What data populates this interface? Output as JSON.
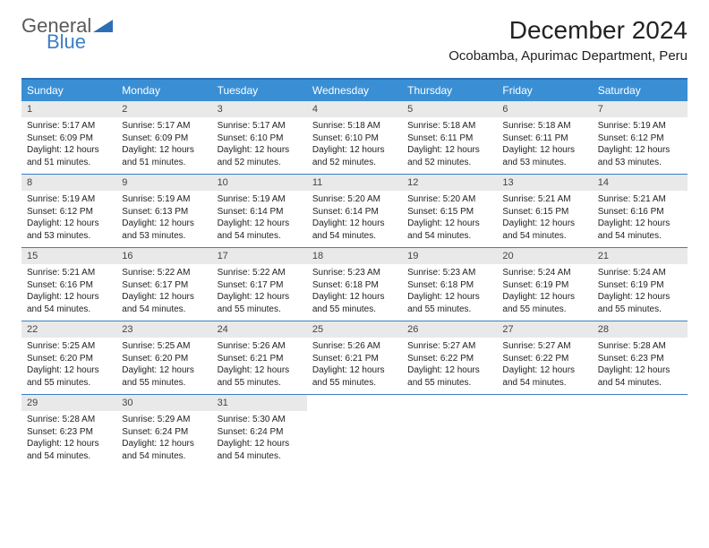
{
  "logo": {
    "text1": "General",
    "text2": "Blue",
    "accent_color": "#3a8fd4"
  },
  "title": "December 2024",
  "location": "Ocobamba, Apurimac Department, Peru",
  "weekday_header_bg": "#3a8fd4",
  "weekday_header_fg": "#ffffff",
  "daynum_bg": "#e9e9e9",
  "row_border_color": "#3a7fc4",
  "weekdays": [
    "Sunday",
    "Monday",
    "Tuesday",
    "Wednesday",
    "Thursday",
    "Friday",
    "Saturday"
  ],
  "weeks": [
    [
      {
        "n": "1",
        "sunrise": "5:17 AM",
        "sunset": "6:09 PM",
        "daylight": "12 hours and 51 minutes."
      },
      {
        "n": "2",
        "sunrise": "5:17 AM",
        "sunset": "6:09 PM",
        "daylight": "12 hours and 51 minutes."
      },
      {
        "n": "3",
        "sunrise": "5:17 AM",
        "sunset": "6:10 PM",
        "daylight": "12 hours and 52 minutes."
      },
      {
        "n": "4",
        "sunrise": "5:18 AM",
        "sunset": "6:10 PM",
        "daylight": "12 hours and 52 minutes."
      },
      {
        "n": "5",
        "sunrise": "5:18 AM",
        "sunset": "6:11 PM",
        "daylight": "12 hours and 52 minutes."
      },
      {
        "n": "6",
        "sunrise": "5:18 AM",
        "sunset": "6:11 PM",
        "daylight": "12 hours and 53 minutes."
      },
      {
        "n": "7",
        "sunrise": "5:19 AM",
        "sunset": "6:12 PM",
        "daylight": "12 hours and 53 minutes."
      }
    ],
    [
      {
        "n": "8",
        "sunrise": "5:19 AM",
        "sunset": "6:12 PM",
        "daylight": "12 hours and 53 minutes."
      },
      {
        "n": "9",
        "sunrise": "5:19 AM",
        "sunset": "6:13 PM",
        "daylight": "12 hours and 53 minutes."
      },
      {
        "n": "10",
        "sunrise": "5:19 AM",
        "sunset": "6:14 PM",
        "daylight": "12 hours and 54 minutes."
      },
      {
        "n": "11",
        "sunrise": "5:20 AM",
        "sunset": "6:14 PM",
        "daylight": "12 hours and 54 minutes."
      },
      {
        "n": "12",
        "sunrise": "5:20 AM",
        "sunset": "6:15 PM",
        "daylight": "12 hours and 54 minutes."
      },
      {
        "n": "13",
        "sunrise": "5:21 AM",
        "sunset": "6:15 PM",
        "daylight": "12 hours and 54 minutes."
      },
      {
        "n": "14",
        "sunrise": "5:21 AM",
        "sunset": "6:16 PM",
        "daylight": "12 hours and 54 minutes."
      }
    ],
    [
      {
        "n": "15",
        "sunrise": "5:21 AM",
        "sunset": "6:16 PM",
        "daylight": "12 hours and 54 minutes."
      },
      {
        "n": "16",
        "sunrise": "5:22 AM",
        "sunset": "6:17 PM",
        "daylight": "12 hours and 54 minutes."
      },
      {
        "n": "17",
        "sunrise": "5:22 AM",
        "sunset": "6:17 PM",
        "daylight": "12 hours and 55 minutes."
      },
      {
        "n": "18",
        "sunrise": "5:23 AM",
        "sunset": "6:18 PM",
        "daylight": "12 hours and 55 minutes."
      },
      {
        "n": "19",
        "sunrise": "5:23 AM",
        "sunset": "6:18 PM",
        "daylight": "12 hours and 55 minutes."
      },
      {
        "n": "20",
        "sunrise": "5:24 AM",
        "sunset": "6:19 PM",
        "daylight": "12 hours and 55 minutes."
      },
      {
        "n": "21",
        "sunrise": "5:24 AM",
        "sunset": "6:19 PM",
        "daylight": "12 hours and 55 minutes."
      }
    ],
    [
      {
        "n": "22",
        "sunrise": "5:25 AM",
        "sunset": "6:20 PM",
        "daylight": "12 hours and 55 minutes."
      },
      {
        "n": "23",
        "sunrise": "5:25 AM",
        "sunset": "6:20 PM",
        "daylight": "12 hours and 55 minutes."
      },
      {
        "n": "24",
        "sunrise": "5:26 AM",
        "sunset": "6:21 PM",
        "daylight": "12 hours and 55 minutes."
      },
      {
        "n": "25",
        "sunrise": "5:26 AM",
        "sunset": "6:21 PM",
        "daylight": "12 hours and 55 minutes."
      },
      {
        "n": "26",
        "sunrise": "5:27 AM",
        "sunset": "6:22 PM",
        "daylight": "12 hours and 55 minutes."
      },
      {
        "n": "27",
        "sunrise": "5:27 AM",
        "sunset": "6:22 PM",
        "daylight": "12 hours and 54 minutes."
      },
      {
        "n": "28",
        "sunrise": "5:28 AM",
        "sunset": "6:23 PM",
        "daylight": "12 hours and 54 minutes."
      }
    ],
    [
      {
        "n": "29",
        "sunrise": "5:28 AM",
        "sunset": "6:23 PM",
        "daylight": "12 hours and 54 minutes."
      },
      {
        "n": "30",
        "sunrise": "5:29 AM",
        "sunset": "6:24 PM",
        "daylight": "12 hours and 54 minutes."
      },
      {
        "n": "31",
        "sunrise": "5:30 AM",
        "sunset": "6:24 PM",
        "daylight": "12 hours and 54 minutes."
      },
      null,
      null,
      null,
      null
    ]
  ],
  "labels": {
    "sunrise": "Sunrise:",
    "sunset": "Sunset:",
    "daylight": "Daylight:"
  }
}
